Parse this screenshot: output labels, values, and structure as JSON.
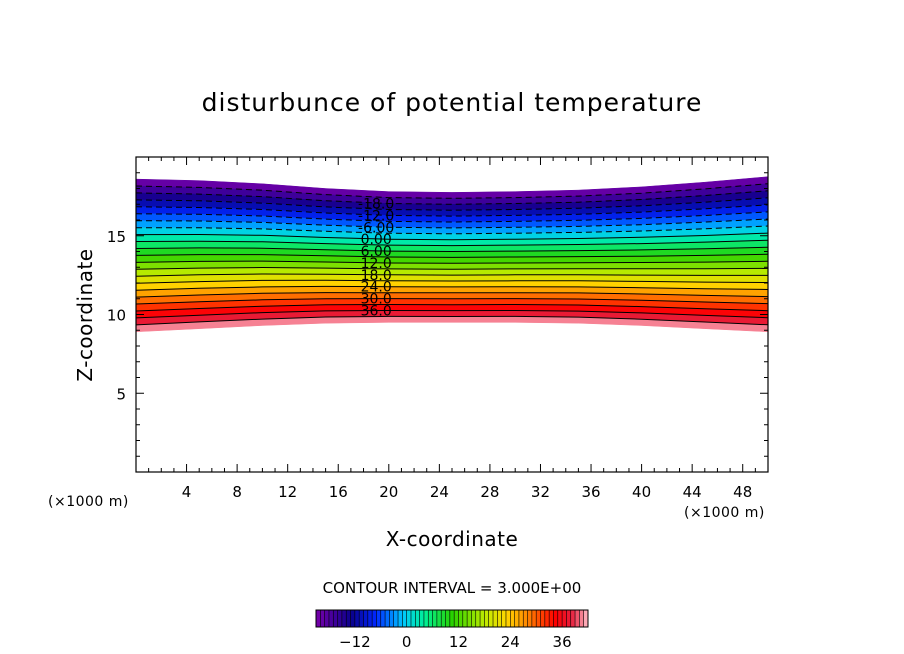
{
  "chart_data": {
    "type": "contour",
    "title": "disturbunce of potential temperature",
    "xlabel": "X-coordinate",
    "ylabel": "Z-coordinate",
    "x_unit": "(×1000 m)",
    "y_unit": "(×1000 m)",
    "xlim": [
      0,
      50
    ],
    "ylim": [
      0,
      20
    ],
    "x_ticks": [
      4,
      8,
      12,
      16,
      20,
      24,
      28,
      32,
      36,
      40,
      44,
      48
    ],
    "y_ticks": [
      5,
      10,
      15
    ],
    "contour_interval_label": "CONTOUR INTERVAL = 3.000E+00",
    "contour_levels": [
      -21,
      -18,
      -15,
      -12,
      -9,
      -6,
      -3,
      0,
      3,
      6,
      9,
      12,
      15,
      18,
      21,
      24,
      27,
      30,
      33,
      36,
      39
    ],
    "contour_labels": [
      "-18.0",
      "-12.0",
      "-6.00",
      "0.00",
      "6.00",
      "12.0",
      "18.0",
      "24.0",
      "30.0",
      "36.0"
    ],
    "colorbar": {
      "min": -21,
      "max": 42,
      "ticks": [
        -12,
        0,
        12,
        24,
        36
      ],
      "tick_labels": [
        "−12",
        "0",
        "12",
        "24",
        "36"
      ]
    },
    "field": {
      "x": [
        0,
        5,
        10,
        15,
        20,
        25,
        30,
        35,
        40,
        45,
        50
      ],
      "bottom_z": [
        8.9,
        9.1,
        9.3,
        9.45,
        9.5,
        9.5,
        9.5,
        9.45,
        9.3,
        9.1,
        8.9
      ],
      "top_z": [
        18.6,
        18.5,
        18.3,
        18.0,
        17.8,
        17.75,
        17.8,
        17.9,
        18.1,
        18.4,
        18.75
      ]
    }
  }
}
